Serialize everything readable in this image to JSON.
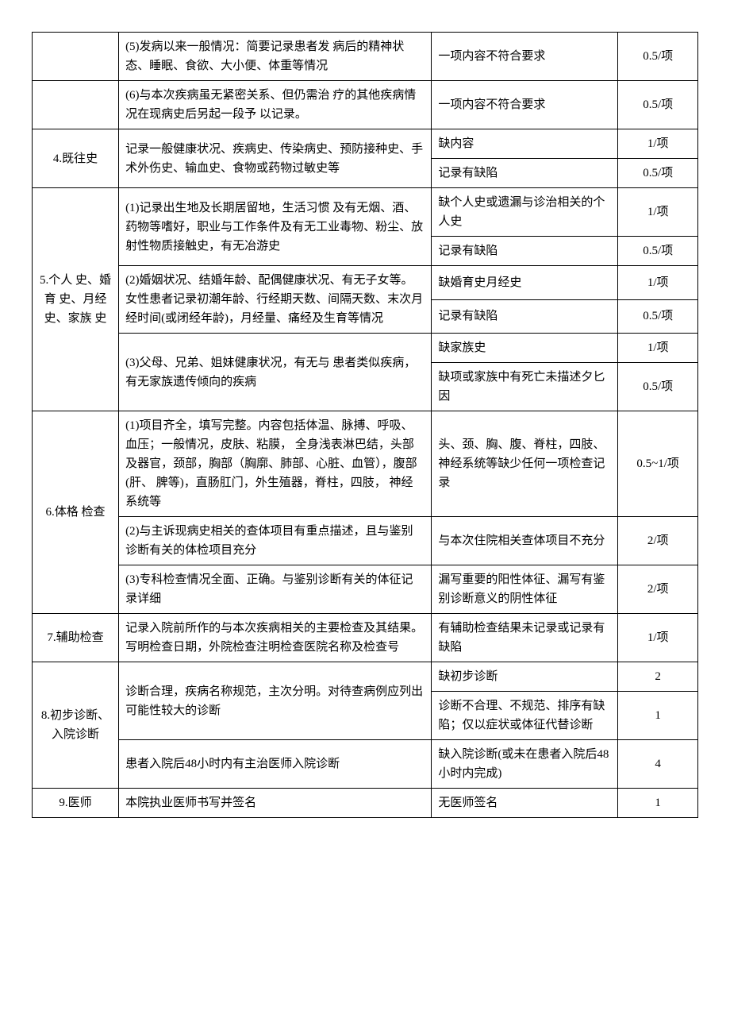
{
  "rows": [
    {
      "c1": "",
      "c2": "(5)发病以来一般情况：简要记录患者发 病后的精神状态、睡眠、食欲、大小便、体重等情况",
      "c3": "一项内容不符合要求",
      "c4": "0.5/项",
      "c1span": 1
    },
    {
      "c1": "",
      "c2": "(6)与本次疾病虽无紧密关系、但仍需治 疗的其他疾病情况在现病史后另起一段予 以记录。",
      "c3": "一项内容不符合要求",
      "c4": "0.5/项",
      "c1span": 1
    },
    {
      "c1": "4.既往史",
      "c2": "记录一般健康状况、疾病史、传染病史、预防接种史、手术外伤史、输血史、食物或药物过敏史等",
      "c3": "缺内容",
      "c4": "1/项",
      "c1span": 2,
      "c2span": 2
    },
    {
      "c3": "记录有缺陷",
      "c4": "0.5/项"
    },
    {
      "c1": "5.个人 史、婚育 史、月经 史、家族 史",
      "c2": "(1)记录出生地及长期居留地，生活习惯 及有无烟、酒、药物等嗜好，职业与工作条件及有无工业毒物、粉尘、放射性物质接触史，有无冶游史",
      "c3": "缺个人史或遗漏与诊治相关的个人史",
      "c4": "1/项",
      "c1span": 6,
      "c2span": 2
    },
    {
      "c3": "记录有缺陷",
      "c4": "0.5/项"
    },
    {
      "c2": "(2)婚姻状况、结婚年龄、配偶健康状况、有无子女等。女性患者记录初潮年龄、行经期天数、间隔天数、末次月经时间(或闭经年龄)，月经量、痛经及生育等情况",
      "c3": "缺婚育史月经史",
      "c4": "1/项",
      "c2span": 2
    },
    {
      "c3": "记录有缺陷",
      "c4": "0.5/项"
    },
    {
      "c2": "(3)父母、兄弟、姐妹健康状况，有无与 患者类似疾病，有无家族遗传倾向的疾病",
      "c3": "缺家族史",
      "c4": "1/项",
      "c2span": 2
    },
    {
      "c3": "缺项或家族中有死亡未描述夕匕因",
      "c4": "0.5/项"
    },
    {
      "c1": "6.体格 检查",
      "c2": "(1)项目齐全，填写完整。内容包括体温、脉搏、呼吸、血压；一般情况，皮肤、粘膜， 全身浅表淋巴结，头部及器官，颈部，胸部（胸廓、肺部、心脏、血管），腹部(肝、 脾等)，直肠肛门，外生殖器，脊柱，四肢， 神经系统等",
      "c3": "头、颈、胸、腹、脊柱，四肢、神经系统等缺少任何一项检查记录",
      "c4": "0.5~1/项",
      "c1span": 3
    },
    {
      "c2": "(2)与主诉现病史相关的查体项目有重点描述，且与鉴别诊断有关的体检项目充分",
      "c3": "与本次住院相关查体项目不充分",
      "c4": "2/项"
    },
    {
      "c2": "(3)专科检查情况全面、正确。与鉴别诊断有关的体征记录详细",
      "c3": "漏写重要的阳性体征、漏写有鉴别诊断意义的阴性体征",
      "c4": "2/项"
    },
    {
      "c1": "7.辅助检查",
      "c2": "记录入院前所作的与本次疾病相关的主要检查及其结果。写明检查日期，外院检查注明检查医院名称及检查号",
      "c3": "有辅助检查结果未记录或记录有缺陷",
      "c4": "1/项"
    },
    {
      "c1": "8.初步诊断、入院诊断",
      "c2": "诊断合理，疾病名称规范，主次分明。对待查病例应列出可能性较大的诊断",
      "c3": "缺初步诊断",
      "c4": "2",
      "c1span": 3,
      "c2span": 2
    },
    {
      "c3": "诊断不合理、不规范、排序有缺陷；仅以症状或体征代替诊断",
      "c4": "1"
    },
    {
      "c2": "患者入院后48小时内有主治医师入院诊断",
      "c3": "缺入院诊断(或未在患者入院后48小时内完成)",
      "c4": "4"
    },
    {
      "c1": "9.医师",
      "c2": "本院执业医师书写并签名",
      "c3": "无医师签名",
      "c4": "1"
    }
  ]
}
